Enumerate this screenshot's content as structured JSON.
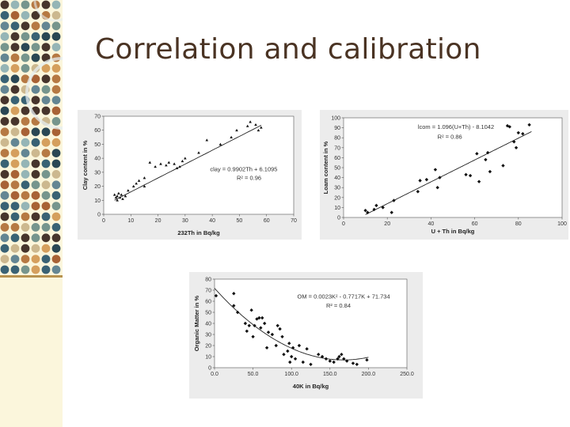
{
  "slide": {
    "title": "Correlation and calibration"
  },
  "chart_data": [
    {
      "type": "scatter",
      "xlabel": "232Th in Bq/kg",
      "ylabel": "Clay content in %",
      "xlim": [
        0,
        70
      ],
      "ylim": [
        0,
        70
      ],
      "xticks": [
        "0",
        "10",
        "20",
        "30",
        "40",
        "50",
        "60",
        "70"
      ],
      "yticks": [
        "0",
        "10",
        "20",
        "30",
        "40",
        "50",
        "60",
        "70"
      ],
      "grid": false,
      "annotations": [
        "clay = 0.9902Th + 6.1095",
        "R² = 0.96"
      ],
      "trendline": {
        "kind": "linear",
        "slope": 0.9902,
        "intercept": 6.1095,
        "x_range": [
          4,
          58
        ]
      },
      "points": [
        [
          4,
          14
        ],
        [
          4.5,
          12
        ],
        [
          5,
          13
        ],
        [
          5,
          10
        ],
        [
          5.5,
          15
        ],
        [
          6,
          12
        ],
        [
          6.5,
          14
        ],
        [
          7,
          11
        ],
        [
          8,
          13
        ],
        [
          9,
          17
        ],
        [
          11,
          20
        ],
        [
          12,
          22
        ],
        [
          13,
          24
        ],
        [
          15,
          20
        ],
        [
          15,
          26
        ],
        [
          17,
          37
        ],
        [
          19,
          34
        ],
        [
          21,
          36
        ],
        [
          23,
          35
        ],
        [
          24,
          37
        ],
        [
          26,
          36
        ],
        [
          27,
          33
        ],
        [
          28,
          34
        ],
        [
          29,
          38
        ],
        [
          30,
          40
        ],
        [
          35,
          44
        ],
        [
          38,
          53
        ],
        [
          43,
          50
        ],
        [
          47,
          55
        ],
        [
          49,
          60
        ],
        [
          53,
          63
        ],
        [
          54,
          66
        ],
        [
          56,
          64
        ],
        [
          57,
          60
        ],
        [
          58,
          62
        ]
      ]
    },
    {
      "type": "scatter",
      "xlabel": "U + Th in Bq/kg",
      "ylabel": "Loam content in %",
      "xlim": [
        0,
        100
      ],
      "ylim": [
        0,
        100
      ],
      "xticks": [
        "0",
        "20",
        "40",
        "60",
        "80",
        "100"
      ],
      "yticks": [
        "0",
        "10",
        "20",
        "30",
        "40",
        "50",
        "60",
        "70",
        "80",
        "90",
        "100"
      ],
      "grid": false,
      "annotations": [
        "lcom = 1.096(U+Th) - 8.1042",
        "R² = 0.86"
      ],
      "trendline": {
        "kind": "linear",
        "slope": 1.096,
        "intercept": -8.1042,
        "x_range": [
          10,
          86
        ]
      },
      "points": [
        [
          10,
          7
        ],
        [
          11,
          5
        ],
        [
          14,
          8
        ],
        [
          15,
          12
        ],
        [
          18,
          10
        ],
        [
          22,
          5
        ],
        [
          23,
          17
        ],
        [
          34,
          26
        ],
        [
          35,
          37
        ],
        [
          38,
          38
        ],
        [
          42,
          48
        ],
        [
          43,
          30
        ],
        [
          44,
          40
        ],
        [
          56,
          43
        ],
        [
          58,
          42
        ],
        [
          61,
          64
        ],
        [
          62,
          36
        ],
        [
          65,
          58
        ],
        [
          66,
          65
        ],
        [
          67,
          46
        ],
        [
          73,
          52
        ],
        [
          75,
          92
        ],
        [
          76,
          91
        ],
        [
          78,
          76
        ],
        [
          79,
          70
        ],
        [
          80,
          85
        ],
        [
          82,
          84
        ],
        [
          85,
          93
        ]
      ]
    },
    {
      "type": "scatter",
      "xlabel": "40K in Bq/kg",
      "ylabel": "Organic Matter in %",
      "xlim": [
        0,
        250
      ],
      "ylim": [
        0,
        80
      ],
      "xticks": [
        "0.0",
        "50.0",
        "100.0",
        "150.0",
        "200.0",
        "250.0"
      ],
      "yticks": [
        "0",
        "10",
        "20",
        "30",
        "40",
        "50",
        "60",
        "70",
        "80"
      ],
      "grid": false,
      "annotations": [
        "OM = 0.0023K² - 0.7717K + 71.734",
        "R² = 0.84"
      ],
      "trendline": {
        "kind": "quadratic",
        "a": 0.0023,
        "b": -0.7717,
        "c": 71.734,
        "x_range": [
          0,
          200
        ]
      },
      "points": [
        [
          2,
          65
        ],
        [
          25,
          67
        ],
        [
          25,
          56
        ],
        [
          30,
          50
        ],
        [
          40,
          40
        ],
        [
          42,
          33
        ],
        [
          45,
          38
        ],
        [
          48,
          52
        ],
        [
          50,
          28
        ],
        [
          52,
          38
        ],
        [
          55,
          44
        ],
        [
          58,
          45
        ],
        [
          60,
          36
        ],
        [
          62,
          45
        ],
        [
          65,
          40
        ],
        [
          68,
          18
        ],
        [
          70,
          32
        ],
        [
          75,
          30
        ],
        [
          80,
          20
        ],
        [
          82,
          38
        ],
        [
          85,
          35
        ],
        [
          88,
          28
        ],
        [
          90,
          12
        ],
        [
          95,
          15
        ],
        [
          97,
          22
        ],
        [
          98,
          5
        ],
        [
          100,
          10
        ],
        [
          102,
          18
        ],
        [
          105,
          8
        ],
        [
          110,
          20
        ],
        [
          115,
          5
        ],
        [
          120,
          17
        ],
        [
          125,
          3
        ],
        [
          135,
          12
        ],
        [
          140,
          10
        ],
        [
          145,
          8
        ],
        [
          150,
          6
        ],
        [
          155,
          5
        ],
        [
          160,
          8
        ],
        [
          162,
          10
        ],
        [
          165,
          12
        ],
        [
          168,
          8
        ],
        [
          172,
          6
        ],
        [
          180,
          4
        ],
        [
          185,
          3
        ],
        [
          198,
          7
        ]
      ]
    }
  ]
}
